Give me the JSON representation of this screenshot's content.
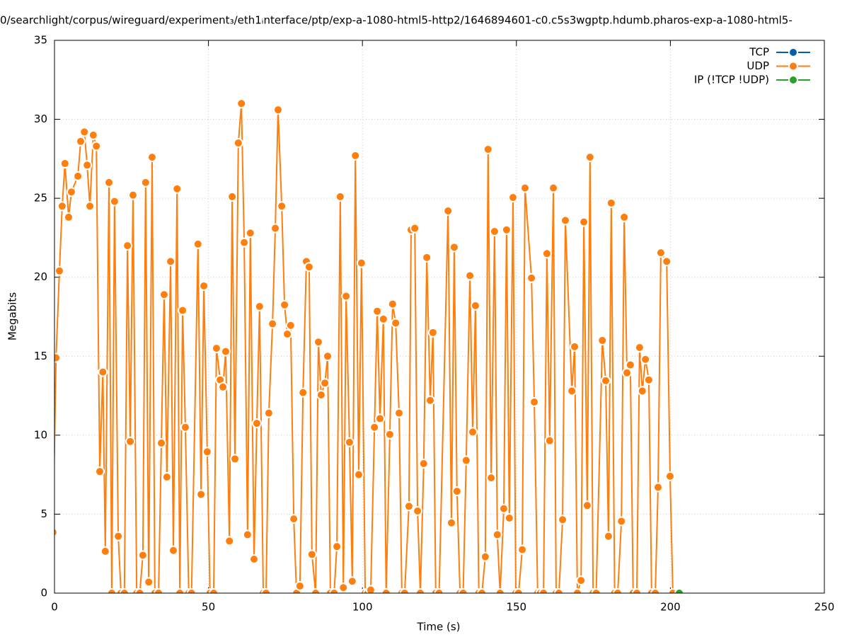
{
  "chart_data": {
    "type": "line",
    "title": "0/searchlight/corpus/wireguard/experiment₃/eth1ᵢnterface/ptp/exp-a-1080-html5-http2/1646894601-c0.c5s3wgptp.hdumb.pharos-exp-a-1080-html5-",
    "xlabel": "Time (s)",
    "ylabel": "Megabits",
    "xlim": [
      0,
      250
    ],
    "xticks": [
      0,
      50,
      100,
      150,
      200,
      250
    ],
    "ylim": [
      0,
      35
    ],
    "yticks": [
      0,
      5,
      10,
      15,
      20,
      25,
      30,
      35
    ],
    "grid": true,
    "legend": "top-right",
    "series": [
      {
        "name": "TCP",
        "color": "#0060ad",
        "x": [],
        "values": []
      },
      {
        "name": "UDP",
        "color": "#ff7f0e",
        "x": [
          -0.5,
          0.5,
          1.6,
          2.5,
          3.4,
          4.6,
          5.5,
          7.6,
          8.5,
          9.7,
          10.6,
          11.5,
          12.6,
          13.6,
          14.7,
          15.7,
          16.5,
          17.7,
          18.6,
          19.5,
          20.7,
          21.6,
          22.7,
          23.7,
          24.6,
          25.5,
          26.7,
          27.7,
          28.7,
          29.6,
          30.6,
          31.7,
          32.6,
          33.8,
          34.7,
          35.6,
          36.5,
          37.7,
          38.6,
          39.8,
          40.7,
          41.6,
          42.5,
          43.6,
          44.5,
          46.6,
          47.6,
          48.5,
          49.6,
          50.5,
          51.7,
          52.6,
          53.8,
          54.7,
          55.6,
          56.8,
          57.7,
          58.6,
          59.7,
          60.7,
          61.6,
          62.7,
          63.6,
          64.8,
          65.7,
          66.6,
          67.8,
          68.7,
          69.6,
          70.8,
          71.7,
          72.6,
          73.8,
          74.7,
          75.6,
          76.7,
          77.7,
          78.6,
          79.7,
          80.7,
          81.8,
          82.7,
          83.6,
          84.8,
          85.7,
          86.6,
          87.8,
          88.7,
          89.6,
          90.8,
          91.7,
          92.8,
          93.8,
          94.7,
          95.8,
          96.7,
          97.7,
          98.8,
          99.7,
          100.9,
          101.8,
          102.7,
          103.9,
          104.8,
          105.7,
          106.8,
          107.7,
          108.9,
          109.8,
          110.8,
          111.9,
          112.8,
          113.7,
          115.1,
          115.8,
          117.0,
          117.9,
          118.8,
          119.9,
          120.9,
          122.0,
          122.9,
          123.8,
          124.9,
          127.8,
          128.9,
          129.8,
          130.7,
          131.7,
          132.7,
          133.7,
          134.9,
          135.8,
          136.7,
          137.8,
          138.8,
          139.9,
          140.8,
          141.8,
          142.9,
          143.8,
          144.7,
          145.9,
          146.8,
          147.7,
          148.9,
          149.8,
          150.7,
          151.9,
          152.8,
          154.9,
          155.8,
          156.9,
          157.8,
          158.8,
          159.9,
          160.8,
          162.0,
          162.9,
          163.8,
          165.0,
          165.9,
          168.0,
          168.9,
          169.8,
          171.0,
          171.9,
          173.0,
          173.9,
          174.9,
          175.9,
          177.9,
          179.0,
          179.9,
          180.8,
          181.9,
          182.9,
          184.1,
          185.0,
          185.9,
          187.0,
          187.9,
          189.1,
          190.0,
          190.9,
          191.9,
          193.0,
          193.9,
          195.1,
          196.0,
          196.9,
          198.8,
          199.9,
          200.8
        ],
        "values": [
          3.85,
          14.9,
          20.4,
          24.5,
          27.2,
          23.8,
          25.4,
          26.4,
          28.6,
          29.2,
          27.1,
          24.5,
          29.0,
          28.3,
          7.7,
          14.0,
          2.65,
          26.0,
          0,
          24.8,
          3.6,
          0,
          0,
          22.0,
          9.6,
          25.2,
          0,
          0,
          2.4,
          26.0,
          0.7,
          27.6,
          0,
          0,
          9.5,
          18.9,
          7.35,
          21.0,
          2.7,
          25.6,
          0,
          17.9,
          10.5,
          0,
          0,
          22.1,
          6.25,
          19.45,
          8.95,
          0,
          0,
          15.5,
          13.5,
          13.05,
          15.3,
          3.3,
          25.1,
          8.5,
          28.5,
          31.0,
          22.2,
          3.7,
          22.8,
          2.15,
          10.75,
          18.15,
          0,
          0,
          11.4,
          17.05,
          23.1,
          30.6,
          24.5,
          18.25,
          16.4,
          16.95,
          4.7,
          0,
          0.45,
          12.7,
          21.0,
          20.65,
          2.45,
          0,
          15.9,
          12.55,
          13.3,
          15.0,
          0,
          0,
          2.95,
          25.1,
          0.35,
          18.8,
          9.55,
          0.75,
          27.7,
          7.5,
          20.9,
          0,
          0,
          0.2,
          10.5,
          17.85,
          11.05,
          17.35,
          0,
          10.05,
          18.3,
          17.1,
          11.4,
          0,
          0,
          5.5,
          23.0,
          23.1,
          5.2,
          0,
          8.2,
          21.25,
          12.2,
          16.5,
          0,
          0,
          24.2,
          4.45,
          21.9,
          6.45,
          0,
          0,
          8.4,
          20.1,
          10.2,
          18.2,
          0,
          0,
          2.3,
          28.1,
          7.3,
          22.9,
          3.7,
          0,
          5.35,
          23.0,
          4.75,
          25.05,
          0,
          0,
          2.75,
          25.65,
          19.95,
          12.1,
          0,
          0,
          0,
          21.5,
          9.65,
          25.65,
          0,
          0,
          4.65,
          23.6,
          12.8,
          15.6,
          0,
          0.8,
          23.5,
          5.55,
          27.6,
          0,
          0,
          16.0,
          13.45,
          3.6,
          24.7,
          0,
          0,
          4.55,
          23.8,
          13.95,
          14.45,
          0,
          0,
          15.55,
          12.8,
          14.8,
          13.5,
          0,
          0,
          6.7,
          21.55,
          21.0,
          7.4,
          0
        ]
      },
      {
        "name": "IP (!TCP  !UDP)",
        "color": "#2ca02c",
        "x": [
          202.9
        ],
        "values": [
          0
        ]
      }
    ]
  }
}
